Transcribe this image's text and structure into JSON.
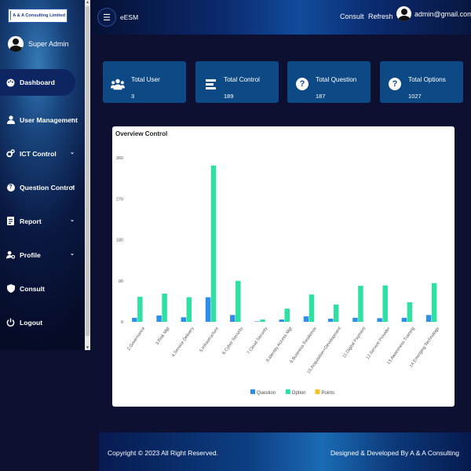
{
  "app": {
    "logo_text": "A & A Consulting Limited",
    "brand": "eESM"
  },
  "sidebar": {
    "user_name": "Super Admin",
    "items": [
      {
        "label": "Dashboard",
        "icon": "palette-icon",
        "active": true,
        "has_chevron": false
      },
      {
        "label": "User Management",
        "icon": "user-icon",
        "active": false,
        "has_chevron": true
      },
      {
        "label": "ICT Control",
        "icon": "cogs-icon",
        "active": false,
        "has_chevron": true
      },
      {
        "label": "Question Control",
        "icon": "question-icon",
        "active": false,
        "has_chevron": true
      },
      {
        "label": "Report",
        "icon": "report-icon",
        "active": false,
        "has_chevron": true
      },
      {
        "label": "Profile",
        "icon": "user-cog-icon",
        "active": false,
        "has_chevron": true
      },
      {
        "label": "Consult",
        "icon": "shield-icon",
        "active": false,
        "has_chevron": false
      },
      {
        "label": "Logout",
        "icon": "power-icon",
        "active": false,
        "has_chevron": false
      }
    ]
  },
  "header": {
    "consult": "Consult",
    "refresh": "Refresh",
    "email": "admin@gmail.com"
  },
  "stats": [
    {
      "title": "Total User",
      "value": "3",
      "icon": "users-icon"
    },
    {
      "title": "Total Control",
      "value": "189",
      "icon": "list-icon"
    },
    {
      "title": "Total Question",
      "value": "187",
      "icon": "question-circle-icon"
    },
    {
      "title": "Total Options",
      "value": "1027",
      "icon": "question-circle-icon"
    }
  ],
  "panel": {
    "title": "Overview Control"
  },
  "chart_data": {
    "type": "bar",
    "title": "Overview Control",
    "categories": [
      "2.Governance",
      "3.Risk Mgt",
      "4.Service Delivery",
      "5.Infrastructure",
      "6.Cyber Security",
      "7.Cloud Security",
      "8.Identity Access Mgt",
      "9.Business Resilience",
      "10.Acquisition+Development",
      "11.Digital Payment",
      "12.Service Provider",
      "13.Awareness Training",
      "14.Emerging Technology"
    ],
    "series": [
      {
        "name": "Question",
        "color": "#2f8fe8",
        "values": [
          9,
          14,
          10,
          54,
          15,
          1,
          5,
          12,
          7,
          9,
          8,
          9,
          15
        ]
      },
      {
        "name": "Option",
        "color": "#2ee0a1",
        "values": [
          55,
          62,
          54,
          343,
          90,
          5,
          29,
          60,
          38,
          79,
          80,
          43,
          85
        ]
      },
      {
        "name": "Points",
        "color": "#f2c22e",
        "values": [
          0,
          0,
          0,
          0,
          0,
          0,
          0,
          0,
          0,
          0,
          0,
          0,
          0
        ]
      }
    ],
    "ylim": [
      0,
      360
    ],
    "yticks": [
      0,
      90,
      180,
      270,
      360
    ],
    "legend": "bottom",
    "grid": false
  },
  "footer": {
    "copyright": "Copyright © 2023 All Right Reserved.",
    "credit": "Designed & Developed By A & A Consulting"
  },
  "colors": {
    "sidebar_bg": "#070d2a",
    "card_bg": "#0d4a85",
    "active_nav": "#0d2563"
  }
}
